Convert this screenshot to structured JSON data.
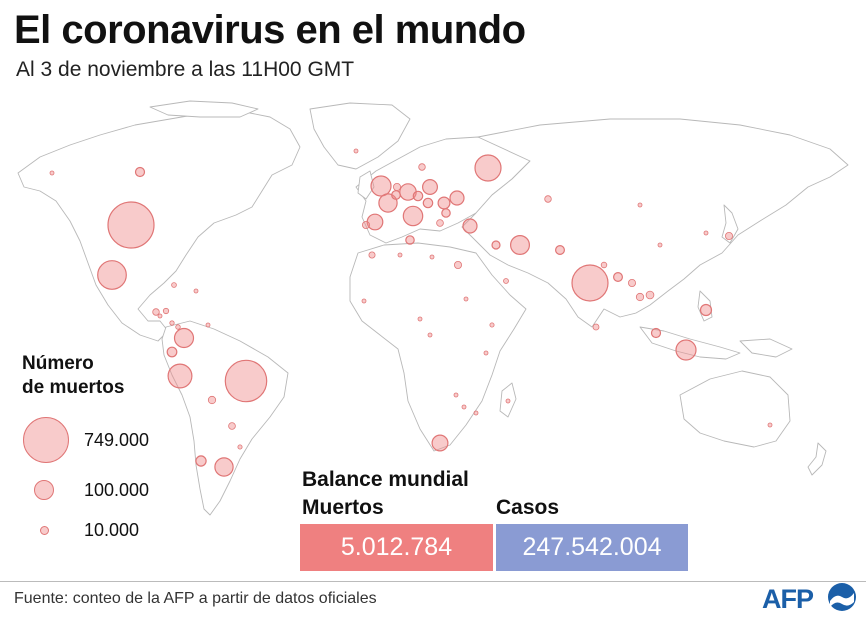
{
  "title": "El coronavirus en el mundo",
  "subtitle": "Al 3 de noviembre a las 11H00 GMT",
  "legend": {
    "title_line1": "Número",
    "title_line2": "de muertos",
    "items": [
      {
        "value": 749000,
        "label": "749.000"
      },
      {
        "value": 100000,
        "label": "100.000"
      },
      {
        "value": 10000,
        "label": "10.000"
      }
    ]
  },
  "balance": {
    "title": "Balance mundial",
    "deaths_label": "Muertos",
    "deaths_value": "5.012.784",
    "cases_label": "Casos",
    "cases_value": "247.542.004"
  },
  "source": "Fuente: conteo de la AFP a partir de datos oficiales",
  "logo_text": "AFP",
  "colors": {
    "bubble_fill": "#f08c8c",
    "bubble_stroke": "#e07676",
    "deaths_box": "#ef8080",
    "cases_box": "#8a9bd3",
    "land_stroke": "#b8b8b8",
    "logo_blue": "#1b5fa8"
  },
  "bubbles": [
    {
      "region": "United States",
      "deaths": 749000
    },
    {
      "region": "Brazil",
      "deaths": 608000
    },
    {
      "region": "India",
      "deaths": 459000
    },
    {
      "region": "Mexico",
      "deaths": 288000
    },
    {
      "region": "Russia",
      "deaths": 241000
    },
    {
      "region": "Peru",
      "deaths": 200000
    },
    {
      "region": "Indonesia",
      "deaths": 143000
    },
    {
      "region": "United Kingdom",
      "deaths": 141000
    },
    {
      "region": "Italy",
      "deaths": 132000
    },
    {
      "region": "Colombia",
      "deaths": 127000
    },
    {
      "region": "Iran",
      "deaths": 126000
    },
    {
      "region": "France",
      "deaths": 118000
    },
    {
      "region": "Argentina",
      "deaths": 116000
    },
    {
      "region": "Germany",
      "deaths": 96000
    },
    {
      "region": "South Africa",
      "deaths": 89000
    },
    {
      "region": "Spain",
      "deaths": 87000
    },
    {
      "region": "Poland",
      "deaths": 78000
    },
    {
      "region": "Turkey",
      "deaths": 69000
    },
    {
      "region": "Ukraine",
      "deaths": 70000
    },
    {
      "region": "Philippines",
      "deaths": 43000
    },
    {
      "region": "Chile",
      "deaths": 37000
    },
    {
      "region": "Ecuador",
      "deaths": 33000
    },
    {
      "region": "Romania",
      "deaths": 50000
    },
    {
      "region": "Pakistan",
      "deaths": 28000
    },
    {
      "region": "Malaysia",
      "deaths": 29000
    },
    {
      "region": "Bangladesh",
      "deaths": 28000
    },
    {
      "region": "Vietnam",
      "deaths": 22000
    },
    {
      "region": "Egypt",
      "deaths": 18000
    },
    {
      "region": "Japan",
      "deaths": 18000
    },
    {
      "region": "Canada",
      "deaths": 29000
    },
    {
      "region": "Bolivia",
      "deaths": 19000
    },
    {
      "region": "Paraguay",
      "deaths": 16000
    },
    {
      "region": "Tunisia",
      "deaths": 25000
    },
    {
      "region": "Iraq",
      "deaths": 23000
    },
    {
      "region": "Thailand",
      "deaths": 19000
    },
    {
      "region": "Belgium",
      "deaths": 26000
    },
    {
      "region": "Hungary",
      "deaths": 31000
    },
    {
      "region": "Czechia",
      "deaths": 31000
    },
    {
      "region": "Bulgaria",
      "deaths": 25000
    },
    {
      "region": "Netherlands",
      "deaths": 18000
    },
    {
      "region": "Guatemala",
      "deaths": 15000
    },
    {
      "region": "Morocco",
      "deaths": 14000
    },
    {
      "region": "Myanmar",
      "deaths": 18000
    },
    {
      "region": "Nepal",
      "deaths": 11000
    },
    {
      "region": "Ethiopia",
      "deaths": 6000
    },
    {
      "region": "Kazakhstan",
      "deaths": 15000
    },
    {
      "region": "Greece",
      "deaths": 16000
    },
    {
      "region": "Portugal",
      "deaths": 18000
    },
    {
      "region": "Sweden",
      "deaths": 15000
    },
    {
      "region": "Saudi Arabia",
      "deaths": 8800
    },
    {
      "region": "Uruguay",
      "deaths": 6100
    },
    {
      "region": "Venezuela",
      "deaths": 5000
    },
    {
      "region": "Cuba",
      "deaths": 8200
    },
    {
      "region": "Honduras",
      "deaths": 10000
    },
    {
      "region": "Kenya",
      "deaths": 5000
    },
    {
      "region": "Zambia",
      "deaths": 3600
    },
    {
      "region": "Zimbabwe",
      "deaths": 4700
    },
    {
      "region": "Nigeria",
      "deaths": 2900
    },
    {
      "region": "Algeria",
      "deaths": 5900
    },
    {
      "region": "Sri Lanka",
      "deaths": 13000
    },
    {
      "region": "Mongolia",
      "deaths": 1800
    },
    {
      "region": "China",
      "deaths": 4600
    },
    {
      "region": "South Korea",
      "deaths": 2900
    },
    {
      "region": "Australia",
      "deaths": 1700
    },
    {
      "region": "Libya",
      "deaths": 5000
    },
    {
      "region": "Sudan",
      "deaths": 2800
    },
    {
      "region": "Cameroon",
      "deaths": 1600
    },
    {
      "region": "Senegal",
      "deaths": 1800
    },
    {
      "region": "Mozambique",
      "deaths": 1900
    },
    {
      "region": "Madagascar",
      "deaths": 900
    },
    {
      "region": "Costa Rica",
      "deaths": 6900
    },
    {
      "region": "Panama",
      "deaths": 7300
    },
    {
      "region": "Dominican Republic",
      "deaths": 4100
    },
    {
      "region": "El Salvador",
      "deaths": 3500
    },
    {
      "region": "Greenland/Iceland",
      "deaths": 33
    },
    {
      "region": "Alaska",
      "deaths": 800
    }
  ]
}
